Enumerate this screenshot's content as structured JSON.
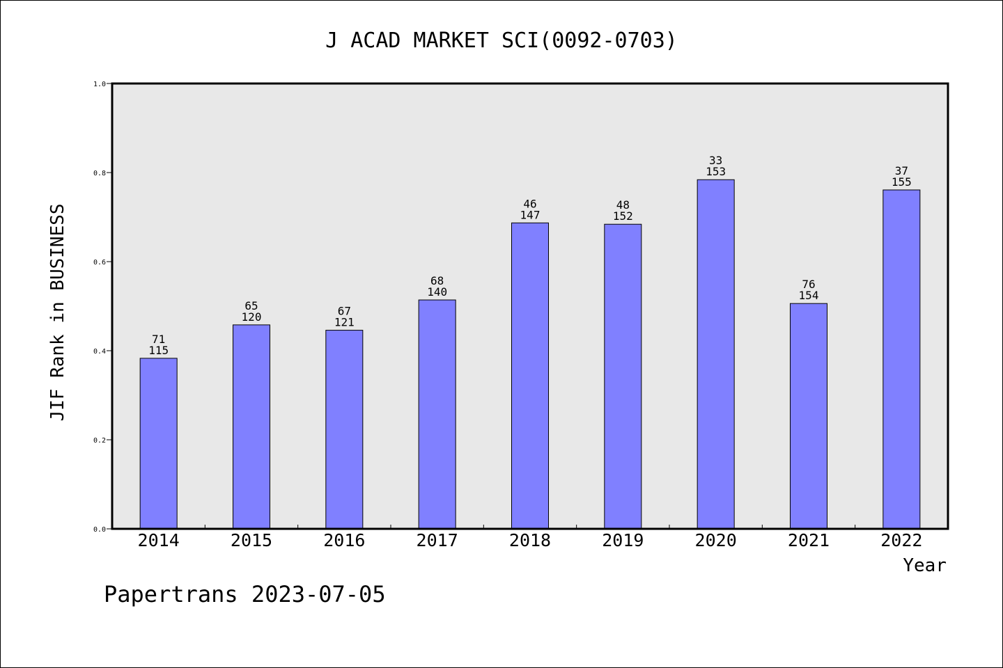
{
  "chart_data": {
    "type": "bar",
    "title": "J ACAD MARKET SCI(0092-0703)",
    "xlabel": "Year",
    "ylabel": "JIF Rank in BUSINESS",
    "categories": [
      "2014",
      "2015",
      "2016",
      "2017",
      "2018",
      "2019",
      "2020",
      "2021",
      "2022"
    ],
    "values": [
      0.383,
      0.458,
      0.446,
      0.514,
      0.687,
      0.684,
      0.784,
      0.506,
      0.761
    ],
    "rank": [
      "71",
      "65",
      "67",
      "68",
      "46",
      "48",
      "33",
      "76",
      "37"
    ],
    "total": [
      "115",
      "120",
      "121",
      "140",
      "147",
      "152",
      "153",
      "154",
      "155"
    ],
    "ylim": [
      0,
      1.0
    ],
    "yticks": [
      "0.0",
      "0.2",
      "0.4",
      "0.6",
      "0.8",
      "1.0"
    ],
    "grid": false,
    "bar_color": "#8080ff",
    "plot_background": "#e8e8e8"
  },
  "footer": "Papertrans 2023-07-05"
}
